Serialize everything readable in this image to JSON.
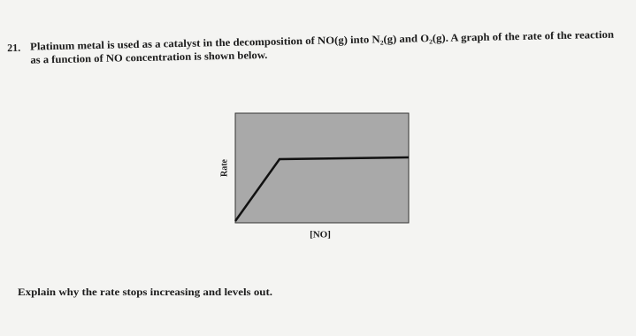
{
  "question": {
    "number": "21.",
    "lines": [
      "Platinum metal is used as a catalyst in the decomposition of NO(g) into N₂(g) and O₂(g). A graph of the rate of the reaction",
      "as a function of NO concentration is shown below."
    ],
    "graph": {
      "y_label": "Rate",
      "x_label": "[NO]"
    },
    "prompt": "Explain why the rate stops increasing and levels out."
  }
}
